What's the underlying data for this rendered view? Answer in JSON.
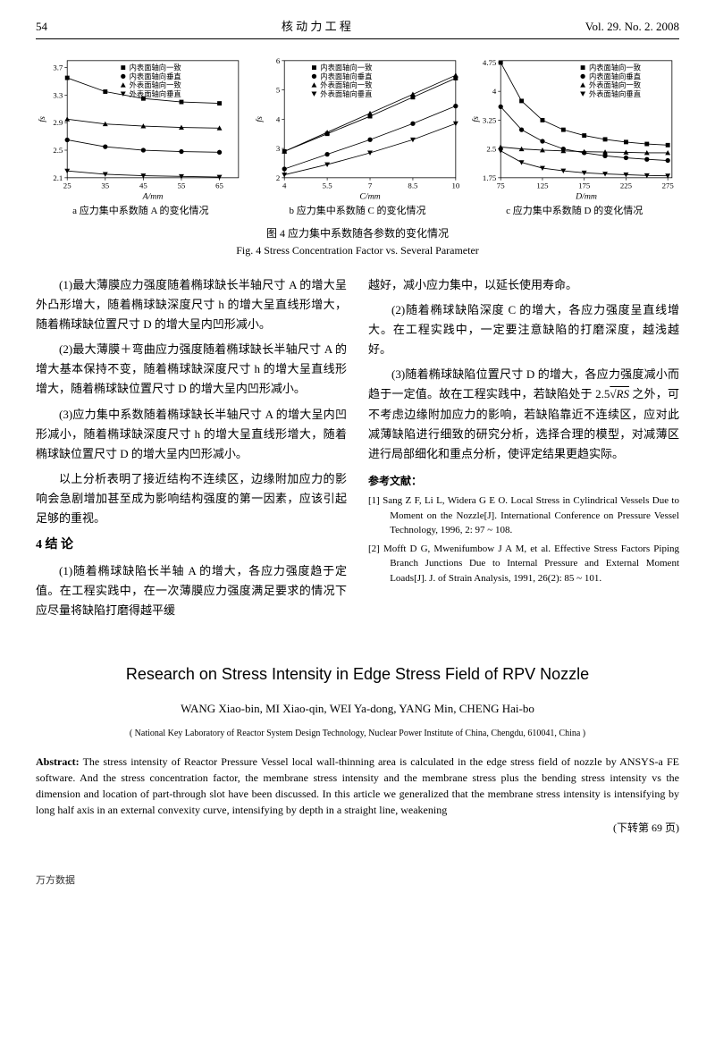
{
  "header": {
    "page_num": "54",
    "journal_cn": "核 动 力 工 程",
    "issue": "Vol. 29. No. 2. 2008"
  },
  "charts": {
    "a": {
      "type": "scatter-line",
      "xlabel": "A/mm",
      "ylabel": "fs",
      "xlim": [
        25,
        70
      ],
      "ylim": [
        2.1,
        3.8
      ],
      "xticks": [
        25,
        35,
        45,
        55,
        65
      ],
      "yticks": [
        2.1,
        2.5,
        2.9,
        3.3,
        3.7
      ],
      "legend_items": [
        "内表面轴向一致",
        "内表面轴向垂直",
        "外表面轴向一致",
        "外表面轴向垂直"
      ],
      "legend_markers": [
        "■",
        "●",
        "▲",
        "▼"
      ],
      "series": [
        {
          "marker": "■",
          "color": "#000000",
          "x": [
            25,
            35,
            45,
            55,
            65
          ],
          "y": [
            3.55,
            3.35,
            3.25,
            3.2,
            3.18
          ]
        },
        {
          "marker": "●",
          "color": "#000000",
          "x": [
            25,
            35,
            45,
            55,
            65
          ],
          "y": [
            2.65,
            2.55,
            2.5,
            2.48,
            2.47
          ]
        },
        {
          "marker": "▲",
          "color": "#000000",
          "x": [
            25,
            35,
            45,
            55,
            65
          ],
          "y": [
            2.95,
            2.88,
            2.85,
            2.83,
            2.82
          ]
        },
        {
          "marker": "▼",
          "color": "#000000",
          "x": [
            25,
            35,
            45,
            55,
            65
          ],
          "y": [
            2.2,
            2.15,
            2.13,
            2.12,
            2.11
          ]
        }
      ],
      "sublabel": "a   应力集中系数随 A 的变化情况"
    },
    "b": {
      "type": "scatter-line",
      "xlabel": "C/mm",
      "ylabel": "fs",
      "xlim": [
        4.0,
        10
      ],
      "ylim": [
        2,
        6
      ],
      "xticks": [
        4.0,
        5.5,
        7.0,
        8.5,
        10
      ],
      "yticks": [
        2,
        3,
        4,
        5,
        6
      ],
      "legend_items": [
        "内表面轴向一致",
        "内表面轴向垂直",
        "外表面轴向一致",
        "外表面轴向垂直"
      ],
      "legend_markers": [
        "■",
        "●",
        "▲",
        "▼"
      ],
      "series": [
        {
          "marker": "■",
          "color": "#000000",
          "x": [
            4.0,
            5.5,
            7.0,
            8.5,
            10
          ],
          "y": [
            2.9,
            3.5,
            4.1,
            4.75,
            5.4
          ]
        },
        {
          "marker": "●",
          "color": "#000000",
          "x": [
            4.0,
            5.5,
            7.0,
            8.5,
            10
          ],
          "y": [
            2.3,
            2.8,
            3.3,
            3.85,
            4.45
          ]
        },
        {
          "marker": "▲",
          "color": "#000000",
          "x": [
            4.0,
            5.5,
            7.0,
            8.5,
            10
          ],
          "y": [
            2.9,
            3.55,
            4.2,
            4.85,
            5.5
          ]
        },
        {
          "marker": "▼",
          "color": "#000000",
          "x": [
            4.0,
            5.5,
            7.0,
            8.5,
            10
          ],
          "y": [
            2.1,
            2.45,
            2.85,
            3.3,
            3.85
          ]
        }
      ],
      "sublabel": "b   应力集中系数随 C 的变化情况"
    },
    "c": {
      "type": "scatter-line",
      "xlabel": "D/mm",
      "ylabel": "fs",
      "xlim": [
        75,
        280
      ],
      "ylim": [
        1.75,
        4.8
      ],
      "xticks": [
        75,
        125,
        175,
        225,
        275
      ],
      "yticks": [
        1.75,
        2.5,
        3.25,
        4.0,
        4.75
      ],
      "legend_items": [
        "内表面轴向一致",
        "内表面轴向垂直",
        "外表面轴向一致",
        "外表面轴向垂直"
      ],
      "legend_markers": [
        "■",
        "●",
        "▲",
        "▼"
      ],
      "series": [
        {
          "marker": "■",
          "color": "#000000",
          "x": [
            75,
            100,
            125,
            150,
            175,
            200,
            225,
            250,
            275
          ],
          "y": [
            4.75,
            3.75,
            3.25,
            3.0,
            2.85,
            2.75,
            2.68,
            2.63,
            2.6
          ]
        },
        {
          "marker": "●",
          "color": "#000000",
          "x": [
            75,
            100,
            125,
            150,
            175,
            200,
            225,
            250,
            275
          ],
          "y": [
            3.6,
            3.0,
            2.7,
            2.5,
            2.4,
            2.32,
            2.27,
            2.23,
            2.2
          ]
        },
        {
          "marker": "▲",
          "color": "#000000",
          "x": [
            75,
            100,
            125,
            150,
            175,
            200,
            225,
            250,
            275
          ],
          "y": [
            2.55,
            2.5,
            2.47,
            2.45,
            2.43,
            2.42,
            2.41,
            2.4,
            2.4
          ]
        },
        {
          "marker": "▼",
          "color": "#000000",
          "x": [
            75,
            100,
            125,
            150,
            175,
            200,
            225,
            250,
            275
          ],
          "y": [
            2.45,
            2.15,
            2.0,
            1.93,
            1.88,
            1.85,
            1.83,
            1.81,
            1.8
          ]
        }
      ],
      "sublabel": "c   应力集中系数随 D 的变化情况"
    },
    "caption_cn": "图 4   应力集中系数随各参数的变化情况",
    "caption_en": "Fig. 4   Stress Concentration Factor vs. Several Parameter"
  },
  "left_col": {
    "p1": "(1)最大薄膜应力强度随着椭球缺长半轴尺寸 A 的增大呈外凸形增大，随着椭球缺深度尺寸 h 的增大呈直线形增大，随着椭球缺位置尺寸 D 的增大呈内凹形减小。",
    "p2": "(2)最大薄膜＋弯曲应力强度随着椭球缺长半轴尺寸 A 的增大基本保持不变，随着椭球缺深度尺寸 h 的增大呈直线形增大，随着椭球缺位置尺寸 D 的增大呈内凹形减小。",
    "p3": "(3)应力集中系数随着椭球缺长半轴尺寸 A 的增大呈内凹形减小，随着椭球缺深度尺寸 h 的增大呈直线形增大，随着椭球缺位置尺寸 D 的增大呈内凹形减小。",
    "p4": "以上分析表明了接近结构不连续区，边缘附加应力的影响会急剧增加甚至成为影响结构强度的第一因素，应该引起足够的重视。",
    "section4": "4  结   论",
    "p5": "(1)随着椭球缺陷长半轴 A 的增大，各应力强度趋于定值。在工程实践中，在一次薄膜应力强度满足要求的情况下应尽量将缺陷打磨得越平缓"
  },
  "right_col": {
    "p1": "越好，减小应力集中，以延长使用寿命。",
    "p2": "(2)随着椭球缺陷深度 C 的增大，各应力强度呈直线增大。在工程实践中，一定要注意缺陷的打磨深度，越浅越好。",
    "p3_pre": "(3)随着椭球缺陷位置尺寸 D 的增大，各应力强度减小而趋于一定值。故在工程实践中，若缺陷处于 2.5",
    "p3_sqrt": "√RS",
    "p3_post": " 之外，可不考虑边缘附加应力的影响，若缺陷靠近不连续区，应对此减薄缺陷进行细致的研究分析，选择合理的模型，对减薄区进行局部细化和重点分析，使评定结果更趋实际。",
    "ref_head": "参考文献：",
    "ref1": "[1] Sang Z F, Li L, Widera G E O. Local Stress in Cylindrical Vessels Due to Moment on the Nozzle[J]. International Conference on Pressure Vessel Technology, 1996, 2: 97 ~ 108.",
    "ref2": "[2] Mofft D G, Mwenifumbow J A M, et al. Effective Stress Factors Piping Branch Junctions Due to Internal Pressure and External Moment Loads[J]. J. of Strain Analysis, 1991, 26(2): 85 ~ 101."
  },
  "english": {
    "title": "Research on Stress Intensity in Edge Stress Field of RPV Nozzle",
    "authors": "WANG Xiao-bin, MI Xiao-qin, WEI Ya-dong, YANG Min, CHENG Hai-bo",
    "affiliation": "( National Key Laboratory of Reactor System Design Technology, Nuclear Power Institute of China, Chengdu, 610041, China )",
    "abstract_label": "Abstract:",
    "abstract_text": " The stress intensity of Reactor Pressure Vessel local wall-thinning area is calculated in the edge stress field of nozzle by ANSYS-a FE software. And the stress concentration factor, the membrane stress intensity and the membrane stress plus the bending stress intensity vs the dimension and location of part-through slot have been discussed. In this article we generalized that the membrane stress intensity is intensifying by long half axis in an external convexity curve, intensifying by depth in a straight line, weakening",
    "continue": "(下转第 69 页)"
  },
  "footer": "万方数据"
}
